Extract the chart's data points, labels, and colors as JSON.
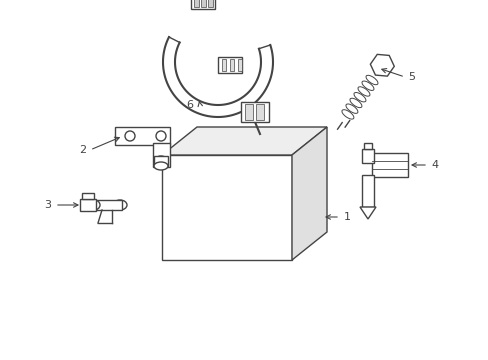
{
  "background_color": "#ffffff",
  "line_color": "#444444",
  "figsize": [
    4.89,
    3.6
  ],
  "dpi": 100,
  "xlim": [
    0,
    489
  ],
  "ylim": [
    0,
    360
  ]
}
